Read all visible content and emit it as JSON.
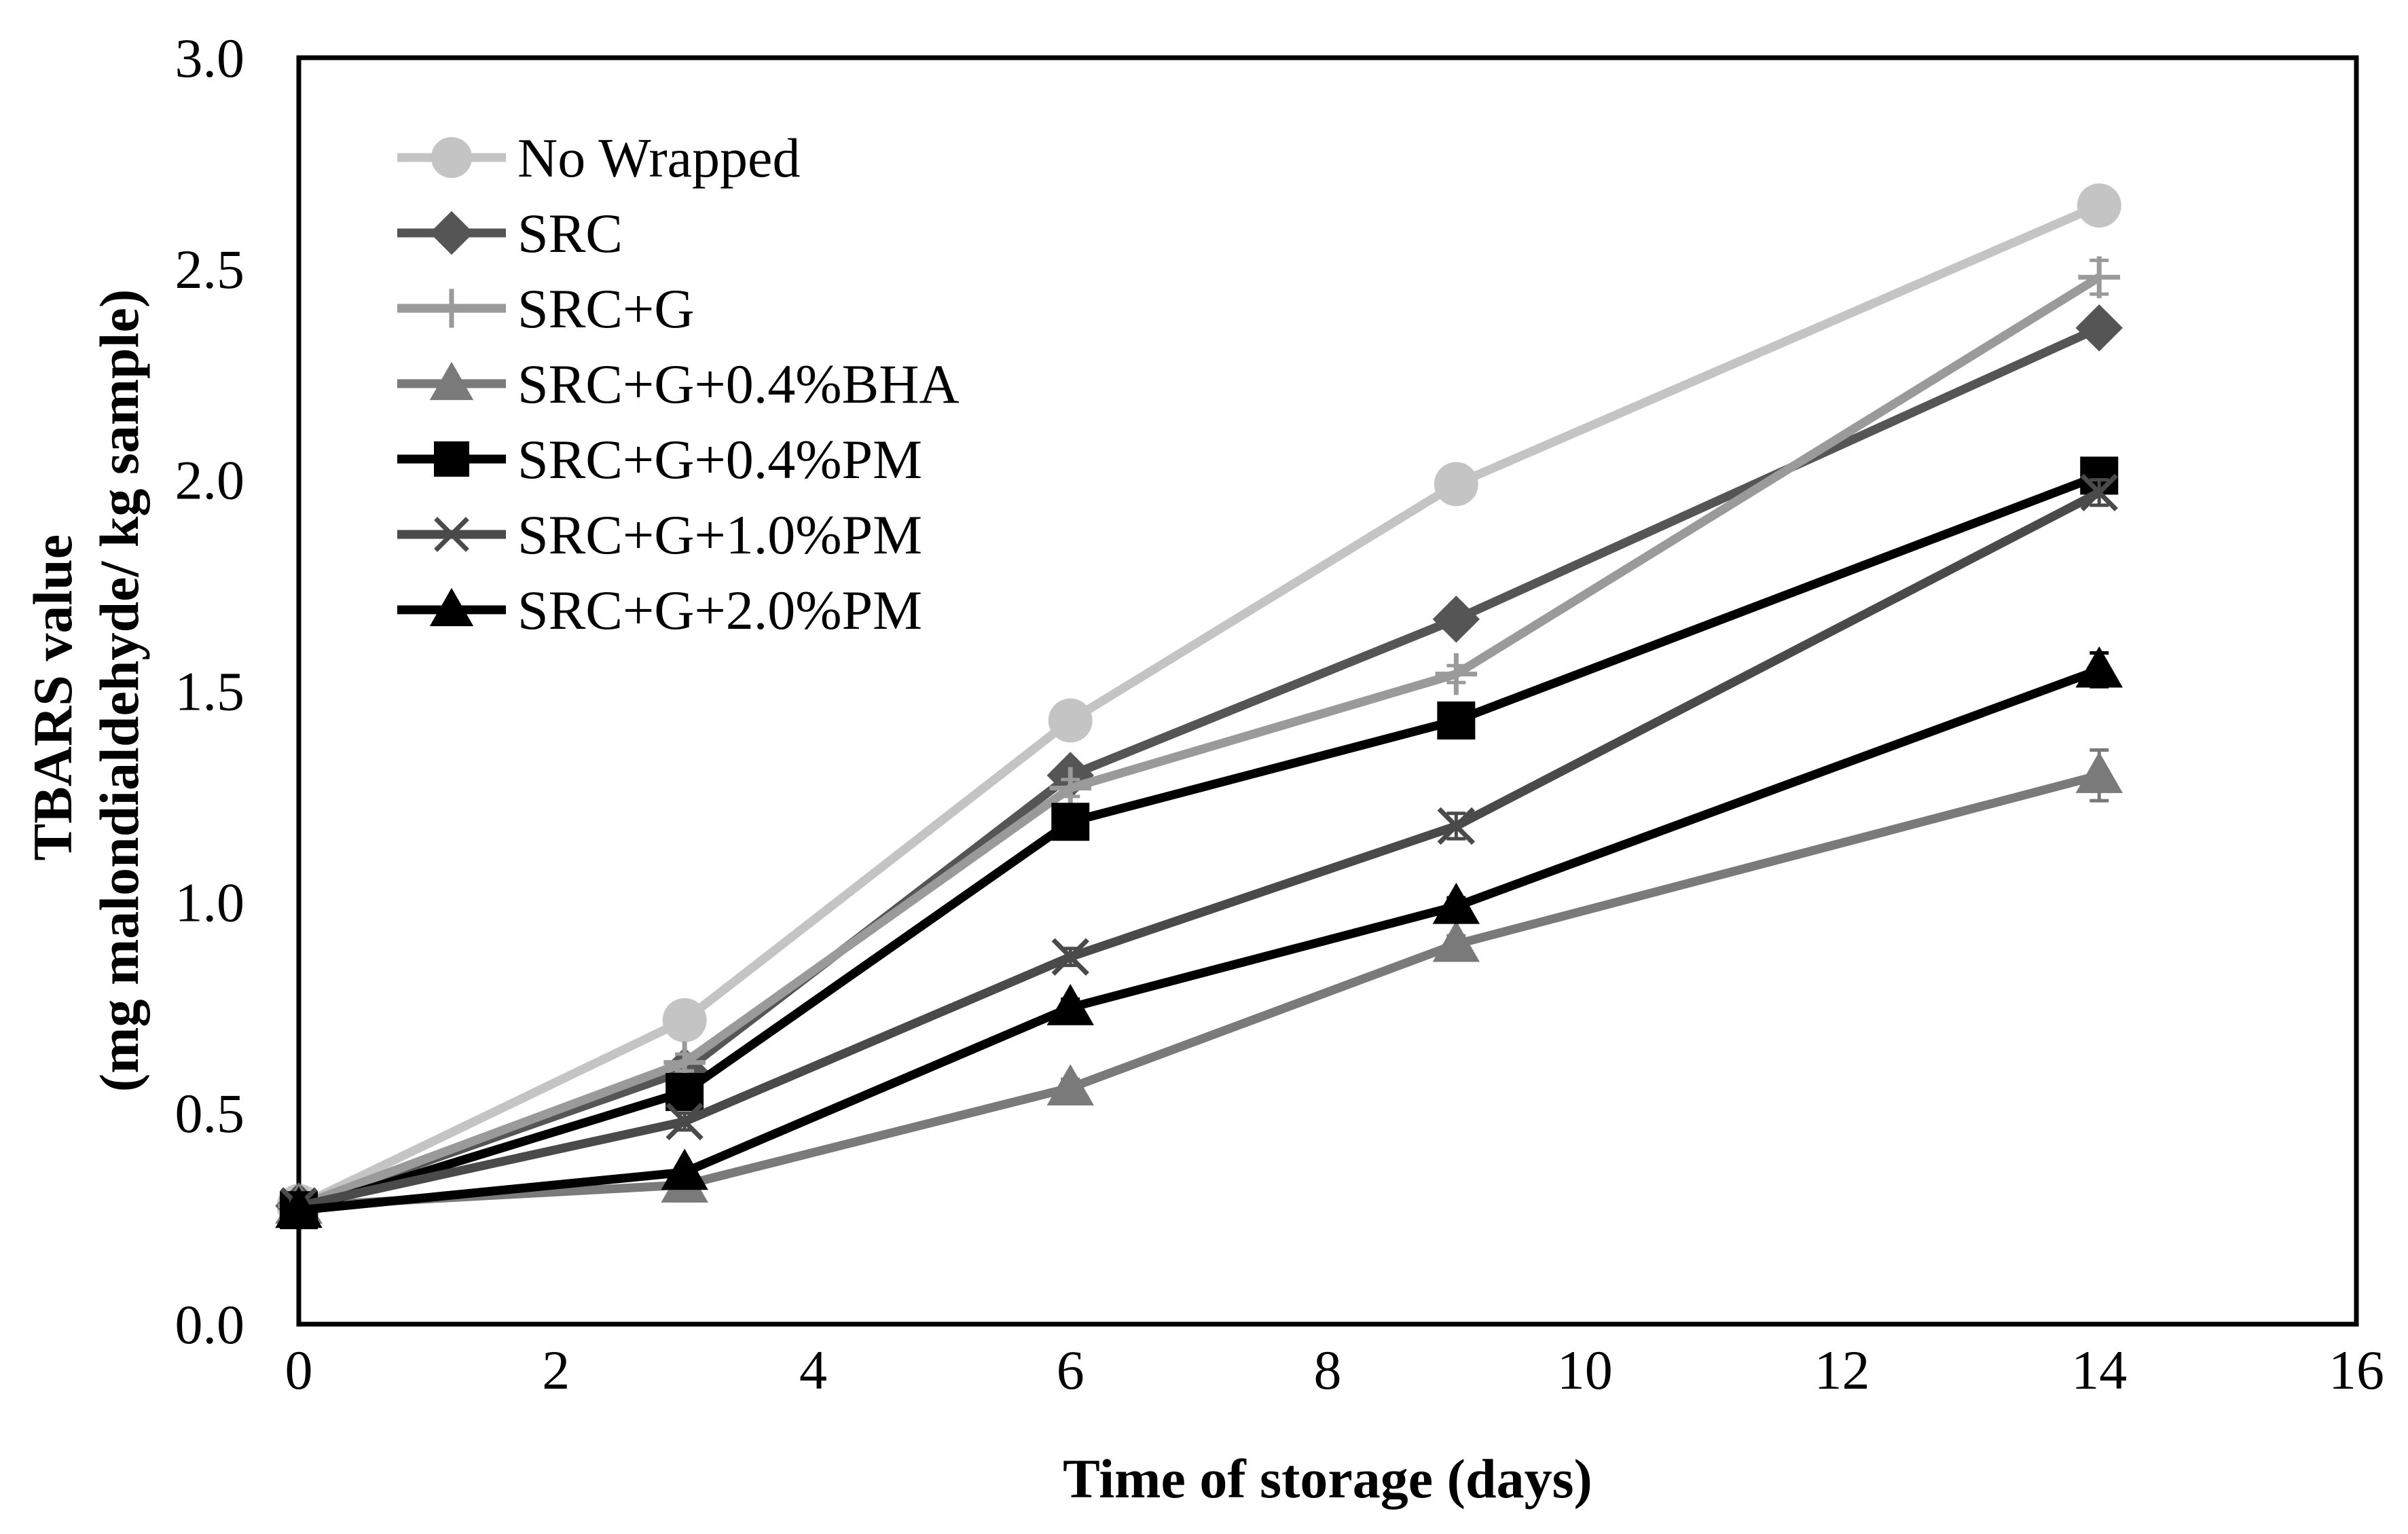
{
  "chart_data": {
    "type": "line",
    "title": "",
    "xlabel": "Time of storage (days)",
    "ylabel_lines": [
      "TBARS value",
      "(mg malondialdehyde/ kg sample)"
    ],
    "xlim": [
      0,
      16
    ],
    "ylim": [
      0,
      3.0
    ],
    "xticks": [
      0,
      2,
      4,
      6,
      8,
      10,
      12,
      14,
      16
    ],
    "yticks": [
      0,
      0.5,
      1.0,
      1.5,
      2.0,
      2.5,
      3.0
    ],
    "ytick_labels": [
      "0.0",
      "0.5",
      "1.0",
      "1.5",
      "2.0",
      "2.5",
      "3.0"
    ],
    "grid": false,
    "legend_position": "top-left",
    "x": [
      0,
      3,
      6,
      9,
      14
    ],
    "series": [
      {
        "name": "No Wrapped",
        "color": "#c4c4c4",
        "marker": "circle",
        "values": [
          0.28,
          0.72,
          1.43,
          1.99,
          2.65
        ],
        "errors": [
          0.01,
          0.02,
          0.02,
          0.03,
          0.02
        ]
      },
      {
        "name": "SRC",
        "color": "#555555",
        "marker": "diamond",
        "values": [
          0.28,
          0.6,
          1.3,
          1.67,
          2.36
        ],
        "errors": [
          0.01,
          0.02,
          0.02,
          0.02,
          0.03
        ]
      },
      {
        "name": "SRC+G",
        "color": "#9a9a9a",
        "marker": "plus",
        "values": [
          0.28,
          0.62,
          1.27,
          1.54,
          2.48
        ],
        "errors": [
          0.01,
          0.02,
          0.02,
          0.02,
          0.04
        ]
      },
      {
        "name": "SRC+G+0.4%BHA",
        "color": "#7a7a7a",
        "marker": "triangle",
        "values": [
          0.28,
          0.33,
          0.56,
          0.9,
          1.3
        ],
        "errors": [
          0.01,
          0.01,
          0.02,
          0.02,
          0.06
        ]
      },
      {
        "name": "SRC+G+0.4%PM",
        "color": "#000000",
        "marker": "square",
        "values": [
          0.27,
          0.55,
          1.19,
          1.43,
          2.01
        ],
        "errors": [
          0.01,
          0.02,
          0.03,
          0.02,
          0.02
        ]
      },
      {
        "name": "SRC+G+1.0%PM",
        "color": "#4a4a4a",
        "marker": "x",
        "values": [
          0.28,
          0.48,
          0.87,
          1.18,
          1.97
        ],
        "errors": [
          0.01,
          0.02,
          0.02,
          0.03,
          0.03
        ]
      },
      {
        "name": "SRC+G+2.0%PM",
        "color": "#000000",
        "marker": "triangle",
        "values": [
          0.27,
          0.36,
          0.75,
          0.99,
          1.55
        ],
        "errors": [
          0.01,
          0.01,
          0.02,
          0.02,
          0.04
        ]
      }
    ]
  }
}
